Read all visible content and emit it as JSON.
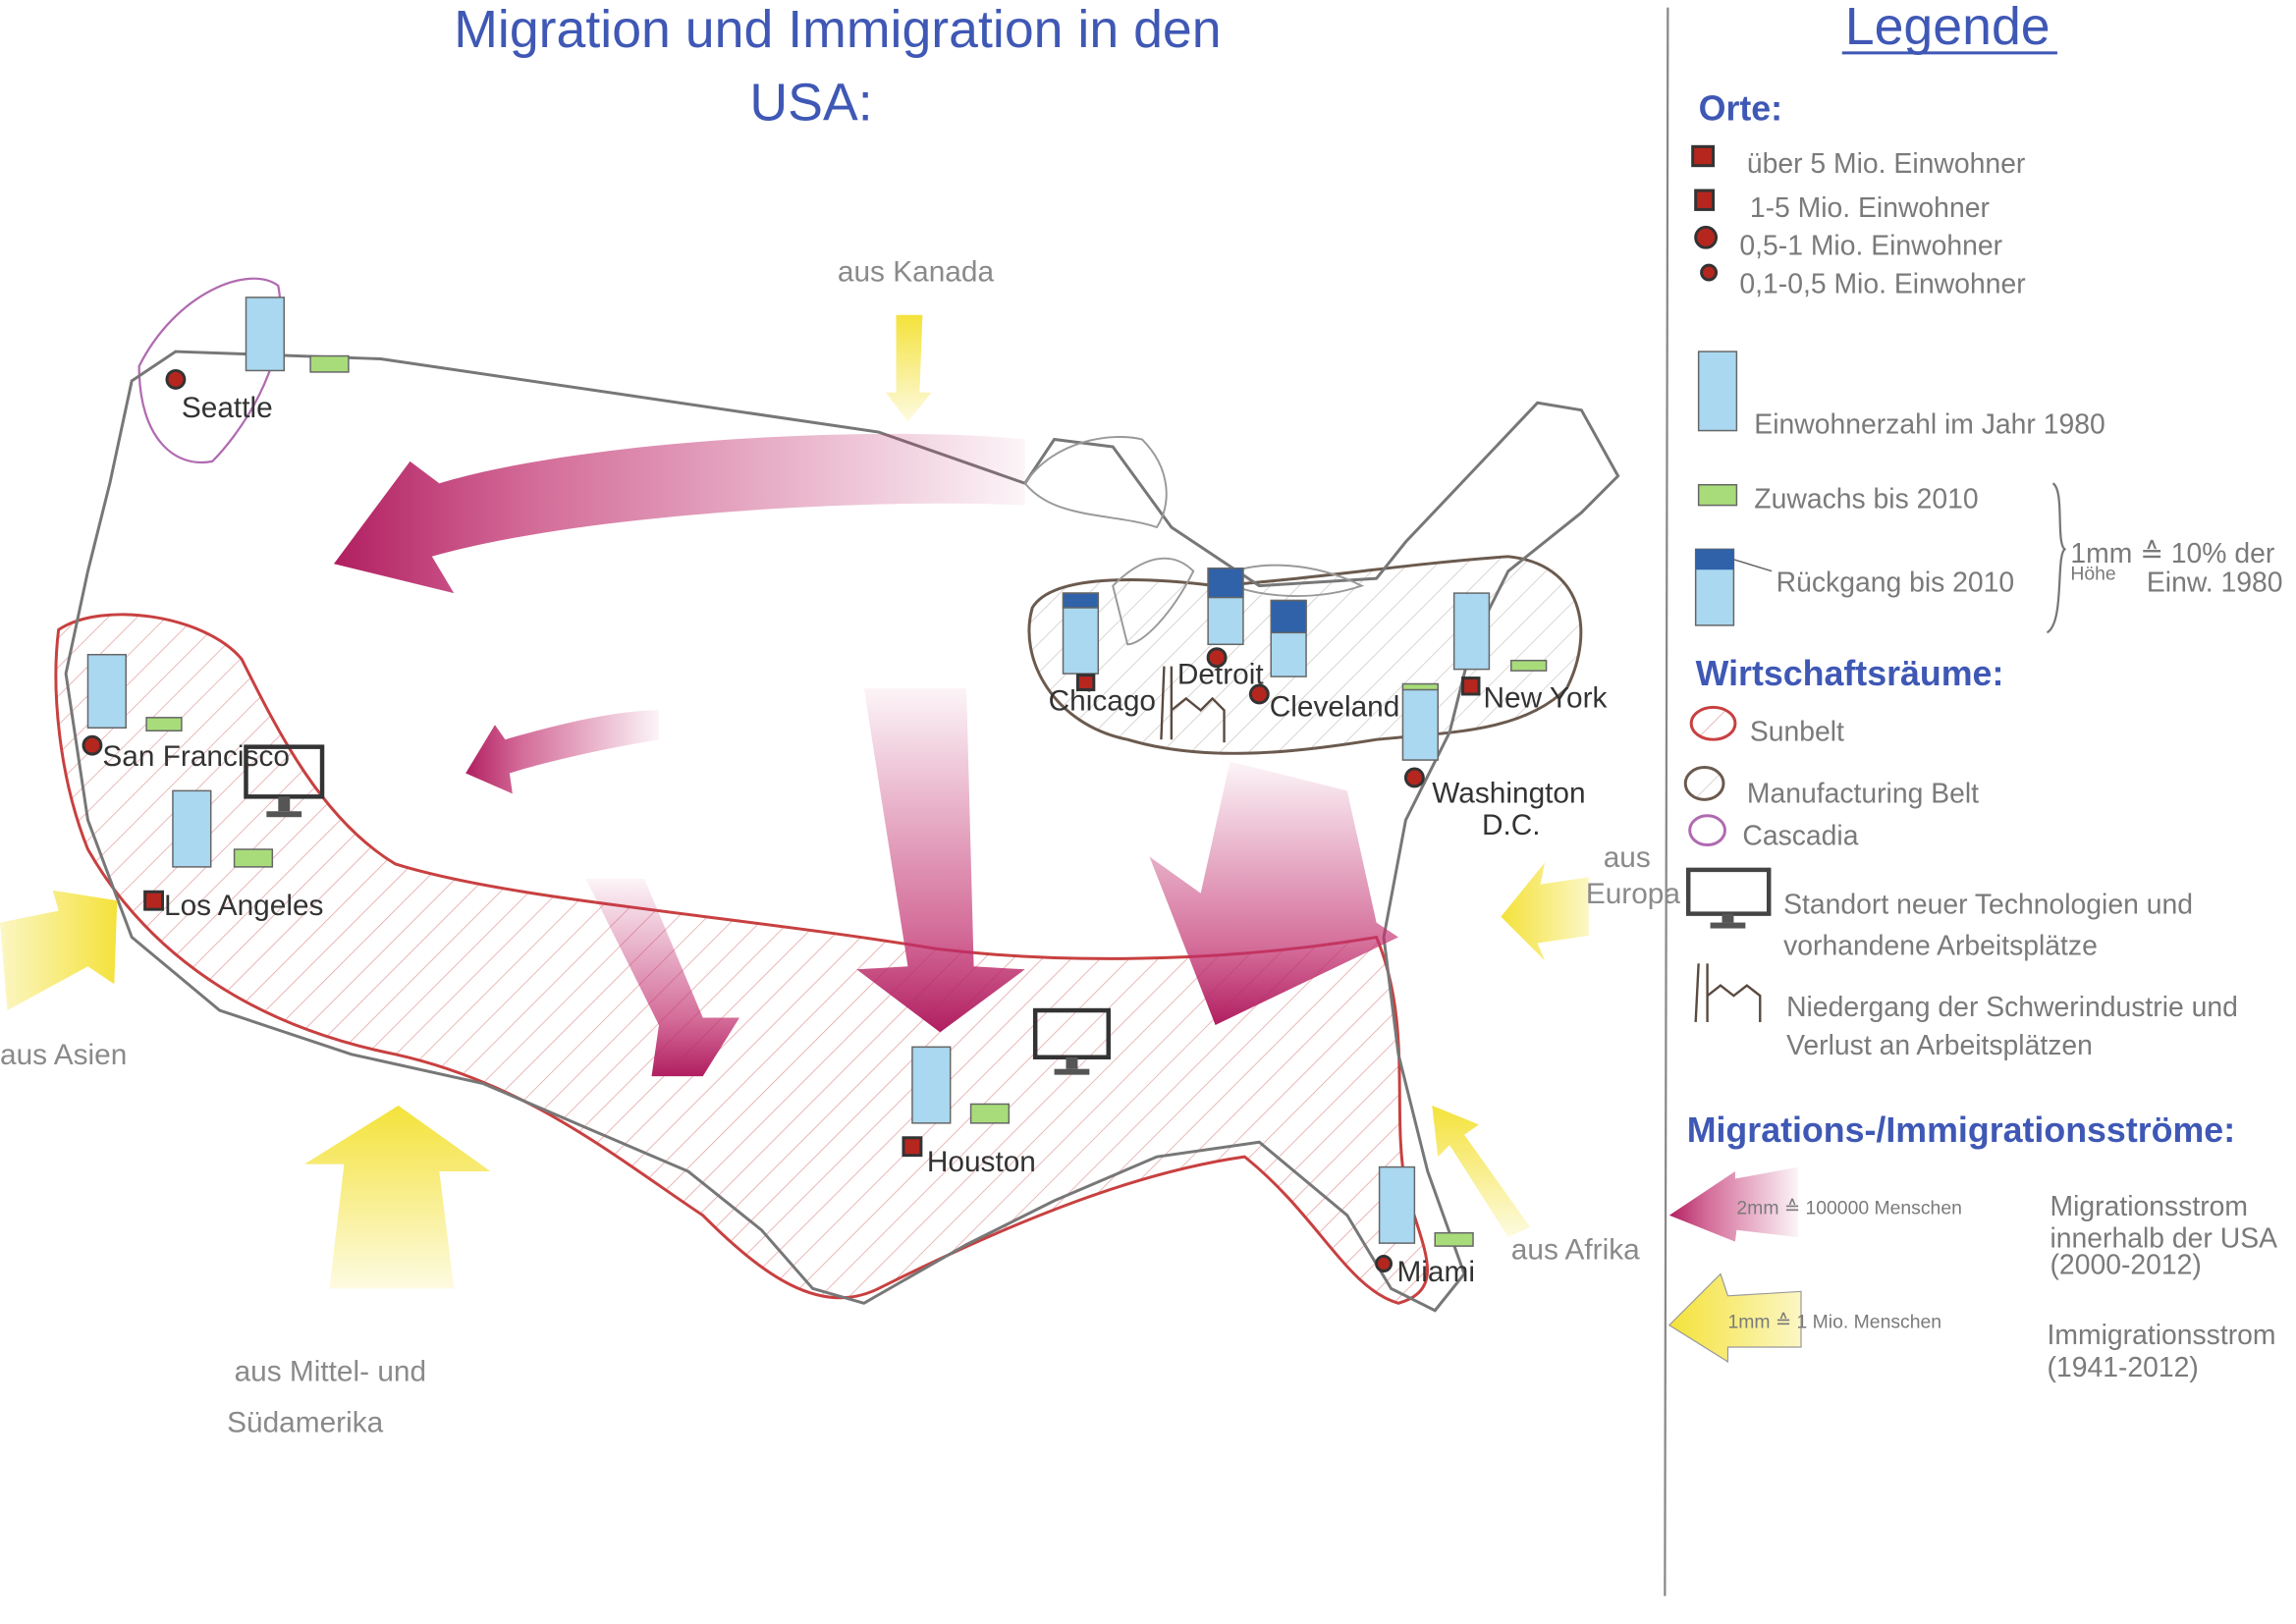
{
  "title": {
    "line1": "Migration und Immigration in den",
    "line2": "USA:"
  },
  "colors": {
    "title_blue": "#3f58b5",
    "city_red": "#b5261e",
    "bar_blue": "#a9d8f0",
    "bar_dark_blue": "#2f62a8",
    "bar_green": "#a8dc7a",
    "migration_magenta": "#c2306f",
    "immigration_yellow": "#f4e23a",
    "sunbelt_red": "#c84040",
    "manufacturing_brown": "#6b5a4e",
    "cascadia_purple": "#b06ab0"
  },
  "map": {
    "cities": [
      {
        "name": "Seattle",
        "symbol": "circle"
      },
      {
        "name": "San Francisco",
        "symbol": "circle"
      },
      {
        "name": "Los Angeles",
        "symbol": "square"
      },
      {
        "name": "Houston",
        "symbol": "square"
      },
      {
        "name": "Miami",
        "symbol": "circle"
      },
      {
        "name": "Chicago",
        "symbol": "square"
      },
      {
        "name": "Detroit",
        "symbol": "circle"
      },
      {
        "name": "Cleveland",
        "symbol": "circle"
      },
      {
        "name": "New York",
        "symbol": "square"
      },
      {
        "name": "Washington",
        "symbol": "circle"
      }
    ],
    "washington_suffix": "D.C.",
    "sources": {
      "kanada": "aus Kanada",
      "asien": "aus Asien",
      "mittel_1": "aus Mittel- und",
      "mittel_2": "Südamerika",
      "europa_1": "aus",
      "europa_2": "Europa",
      "afrika": "aus Afrika"
    }
  },
  "legend": {
    "title": "Legende",
    "orte": {
      "heading": "Orte:",
      "items": [
        "über 5 Mio. Einwohner",
        "1-5 Mio. Einwohner",
        "0,5-1 Mio. Einwohner",
        "0,1-0,5 Mio. Einwohner"
      ]
    },
    "bars": {
      "population_1980": "Einwohnerzahl im Jahr 1980",
      "growth": "Zuwachs bis 2010",
      "decline": "Rückgang bis 2010",
      "scale_1": "1mm ≙ 10% der",
      "scale_hoehe": "Höhe",
      "scale_2": "Einw. 1980"
    },
    "wirtschaft": {
      "heading": "Wirtschaftsräume:",
      "items": [
        "Sunbelt",
        "Manufacturing Belt",
        "Cascadia"
      ],
      "tech_1": "Standort neuer Technologien und",
      "tech_2": "vorhandene Arbeitsplätze",
      "industry_1": "Niedergang der Schwerindustrie und",
      "industry_2": "Verlust an Arbeitsplätzen"
    },
    "stroeme": {
      "heading": "Migrations-/Immigrationsströme:",
      "migration_scale": "2mm ≙ 100000 Menschen",
      "migration_1": "Migrationsstrom",
      "migration_2": "innerhalb der USA",
      "migration_3": "(2000-2012)",
      "immigration_scale": "1mm ≙ 1 Mio. Menschen",
      "immigration_1": "Immigrationsstrom",
      "immigration_2": "(1941-2012)"
    }
  }
}
